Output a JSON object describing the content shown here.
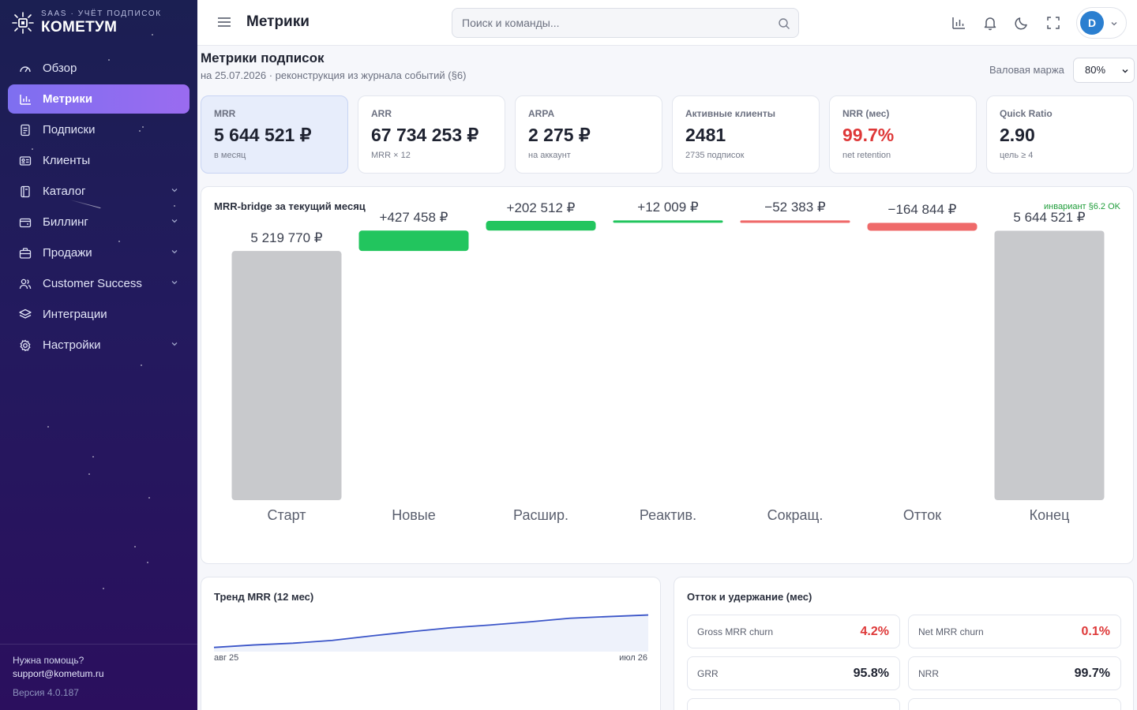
{
  "app": {
    "brand_sub": "SAAS · УЧЁТ ПОДПИСОК",
    "brand_name": "КОМЕТУМ"
  },
  "sidebar": {
    "items": [
      {
        "label": "Обзор",
        "icon": "gauge-icon"
      },
      {
        "label": "Метрики",
        "icon": "bar-chart-icon",
        "active": true
      },
      {
        "label": "Подписки",
        "icon": "document-icon"
      },
      {
        "label": "Клиенты",
        "icon": "id-card-icon"
      },
      {
        "label": "Каталог",
        "icon": "catalog-icon",
        "expandable": true
      },
      {
        "label": "Биллинг",
        "icon": "wallet-icon",
        "expandable": true
      },
      {
        "label": "Продажи",
        "icon": "briefcase-icon",
        "expandable": true
      },
      {
        "label": "Customer Success",
        "icon": "users-icon",
        "expandable": true
      },
      {
        "label": "Интеграции",
        "icon": "layers-icon"
      },
      {
        "label": "Настройки",
        "icon": "gear-icon",
        "expandable": true
      }
    ],
    "help_label": "Нужна помощь?",
    "help_email": "support@kometum.ru",
    "version": "Версия 4.0.187"
  },
  "header": {
    "title": "Метрики",
    "search_placeholder": "Поиск и команды...",
    "avatar_initial": "D"
  },
  "page": {
    "title": "Метрики подписок",
    "subtitle": "на 25.07.2026 · реконструкция из журнала событий (§6)",
    "margin_label": "Валовая маржа",
    "margin_value": "80%"
  },
  "kpis": [
    {
      "label": "MRR",
      "value": "5 644 521 ₽",
      "hint": "в месяц",
      "selected": true
    },
    {
      "label": "ARR",
      "value": "67 734 253 ₽",
      "hint": "MRR × 12"
    },
    {
      "label": "ARPA",
      "value": "2 275 ₽",
      "hint": "на аккаунт"
    },
    {
      "label": "Активные клиенты",
      "value": "2481",
      "hint": "2735 подписок"
    },
    {
      "label": "NRR (мес)",
      "value": "99.7%",
      "hint": "net retention",
      "alert": true
    },
    {
      "label": "Quick Ratio",
      "value": "2.90",
      "hint": "цель ≥ 4"
    }
  ],
  "bridge": {
    "title": "MRR-bridge за текущий месяц",
    "invariant": "инвариант §6.2 OK",
    "colors": {
      "total": "#c8c9cc",
      "up": "#22c55e",
      "down": "#ef6a6a"
    }
  },
  "chart_data": [
    {
      "type": "bar",
      "subtype": "waterfall",
      "title": "MRR-bridge за текущий месяц",
      "categories": [
        "Старт",
        "Новые",
        "Расшир.",
        "Реактив.",
        "Сокращ.",
        "Отток",
        "Конец"
      ],
      "values": [
        5219770,
        427458,
        202512,
        12009,
        -52383,
        -164844,
        5644521
      ],
      "kinds": [
        "total",
        "up",
        "up",
        "up",
        "down",
        "down",
        "total"
      ],
      "labels": [
        "5 219 770 ₽",
        "+427 458 ₽",
        "+202 512 ₽",
        "+12 009 ₽",
        "−52 383 ₽",
        "−164 844 ₽",
        "5 644 521 ₽"
      ],
      "ylim": [
        0,
        5900000
      ]
    },
    {
      "type": "area",
      "title": "Тренд MRR (12 мес)",
      "x": [
        "авг 25",
        "сен 25",
        "окт 25",
        "ноя 25",
        "дек 25",
        "янв 26",
        "фев 26",
        "мар 26",
        "апр 26",
        "май 26",
        "июн 26",
        "июл 26"
      ],
      "tick_labels": [
        "авг 25",
        "июл 26"
      ],
      "values": [
        4720000,
        4790000,
        4840000,
        4920000,
        5050000,
        5170000,
        5280000,
        5360000,
        5450000,
        5550000,
        5600000,
        5644521
      ],
      "color": "#3b55c8",
      "fill": "#eef2fb"
    }
  ],
  "trend": {
    "title": "Тренд MRR (12 мес)",
    "x_start": "авг 25",
    "x_end": "июл 26"
  },
  "retention": {
    "title": "Отток и удержание (мес)",
    "items": [
      {
        "label": "Gross MRR churn",
        "value": "4.2%",
        "alert": true
      },
      {
        "label": "Net MRR churn",
        "value": "0.1%",
        "alert": true
      },
      {
        "label": "GRR",
        "value": "95.8%"
      },
      {
        "label": "NRR",
        "value": "99.7%"
      }
    ]
  }
}
